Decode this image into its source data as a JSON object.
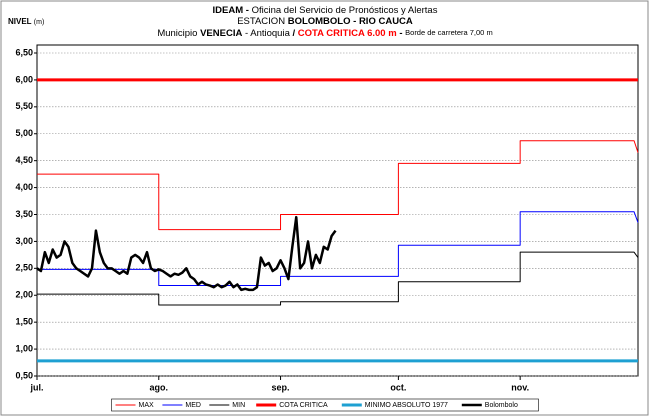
{
  "chart_data": {
    "type": "line",
    "title_parts": [
      "IDEAM -",
      "Oficina del Servicio de Pronósticos y Alertas"
    ],
    "station_parts": [
      "ESTACION",
      "BOLOMBOLO - RIO CAUCA"
    ],
    "subtitle_parts": [
      "Municipio",
      "VENECIA",
      "- Antioquia",
      "/",
      "COTA CRITICA 6.00 m",
      "-",
      "Borde de carretera 7,00 m"
    ],
    "y_label": [
      "NIVEL",
      "(m)"
    ],
    "xlim": [
      0,
      153
    ],
    "xticks": [
      {
        "value": 0,
        "label": "jul."
      },
      {
        "value": 31,
        "label": "ago."
      },
      {
        "value": 62,
        "label": "sep."
      },
      {
        "value": 92,
        "label": "oct."
      },
      {
        "value": 123,
        "label": "nov."
      }
    ],
    "ylim": [
      0.5,
      6.5
    ],
    "yticks": [
      {
        "value": 0.5,
        "label": "0,50"
      },
      {
        "value": 1,
        "label": "1,00"
      },
      {
        "value": 1.5,
        "label": "1,50"
      },
      {
        "value": 2,
        "label": "2,00"
      },
      {
        "value": 2.5,
        "label": "2,50"
      },
      {
        "value": 3,
        "label": "3,00"
      },
      {
        "value": 3.5,
        "label": "3,50"
      },
      {
        "value": 4,
        "label": "4,00"
      },
      {
        "value": 4.5,
        "label": "4,50"
      },
      {
        "value": 5,
        "label": "5,00"
      },
      {
        "value": 5.5,
        "label": "5,50"
      },
      {
        "value": 6,
        "label": "6,00"
      },
      {
        "value": 6.5,
        "label": "6,50"
      }
    ],
    "grid": true,
    "legend": "bottom",
    "series": [
      {
        "name": "MAX",
        "color": "#ff0000",
        "width": 1,
        "x": [
          0,
          31,
          31,
          62,
          62,
          92,
          92,
          123,
          123,
          152,
          153
        ],
        "values": [
          4.25,
          4.25,
          3.22,
          3.22,
          3.5,
          3.5,
          4.45,
          4.45,
          4.87,
          4.87,
          4.65
        ]
      },
      {
        "name": "MED",
        "color": "#0000ff",
        "width": 1,
        "x": [
          0,
          31,
          31,
          62,
          62,
          92,
          92,
          123,
          123,
          152,
          153
        ],
        "values": [
          2.48,
          2.48,
          2.18,
          2.18,
          2.35,
          2.35,
          2.93,
          2.93,
          3.55,
          3.55,
          3.35
        ]
      },
      {
        "name": "MIN",
        "color": "#000000",
        "width": 1,
        "x": [
          0,
          31,
          31,
          62,
          62,
          92,
          92,
          123,
          123,
          152,
          153
        ],
        "values": [
          2.02,
          2.02,
          1.82,
          1.82,
          1.88,
          1.88,
          2.25,
          2.25,
          2.8,
          2.8,
          2.7
        ]
      },
      {
        "name": "COTA CRITICA",
        "color": "#ff0000",
        "width": 3,
        "x": [
          0,
          153
        ],
        "values": [
          6,
          6
        ]
      },
      {
        "name": "MINIMO ABSOLUTO 1977",
        "color": "#1ea0d2",
        "width": 3,
        "x": [
          0,
          153
        ],
        "values": [
          0.78,
          0.78
        ]
      },
      {
        "name": "Bolombolo",
        "color": "#000000",
        "width": 2.5,
        "x": [
          0,
          1,
          2,
          3,
          4,
          5,
          6,
          7,
          8,
          9,
          10,
          11,
          12,
          13,
          14,
          15,
          16,
          17,
          18,
          19,
          20,
          21,
          22,
          23,
          24,
          25,
          26,
          27,
          28,
          29,
          30,
          31,
          32,
          33,
          34,
          35,
          36,
          37,
          38,
          39,
          40,
          41,
          42,
          43,
          44,
          45,
          46,
          47,
          48,
          49,
          50,
          51,
          52,
          53,
          54,
          55,
          56,
          57,
          58,
          59,
          60,
          61,
          62,
          63,
          64,
          65,
          66,
          67,
          68,
          69,
          70,
          71,
          72,
          73,
          74,
          75,
          76
        ],
        "values": [
          2.5,
          2.45,
          2.8,
          2.6,
          2.85,
          2.7,
          2.75,
          3.0,
          2.9,
          2.6,
          2.5,
          2.45,
          2.4,
          2.35,
          2.5,
          3.2,
          2.8,
          2.6,
          2.5,
          2.5,
          2.45,
          2.4,
          2.45,
          2.4,
          2.7,
          2.75,
          2.7,
          2.6,
          2.8,
          2.5,
          2.45,
          2.48,
          2.45,
          2.4,
          2.35,
          2.4,
          2.38,
          2.42,
          2.5,
          2.35,
          2.3,
          2.2,
          2.25,
          2.2,
          2.18,
          2.15,
          2.2,
          2.15,
          2.18,
          2.25,
          2.15,
          2.2,
          2.1,
          2.12,
          2.1,
          2.1,
          2.15,
          2.7,
          2.55,
          2.6,
          2.45,
          2.5,
          2.65,
          2.5,
          2.3,
          2.9,
          3.45,
          2.5,
          2.6,
          3.0,
          2.5,
          2.75,
          2.6,
          2.9,
          2.85,
          3.1,
          3.2
        ]
      }
    ]
  }
}
